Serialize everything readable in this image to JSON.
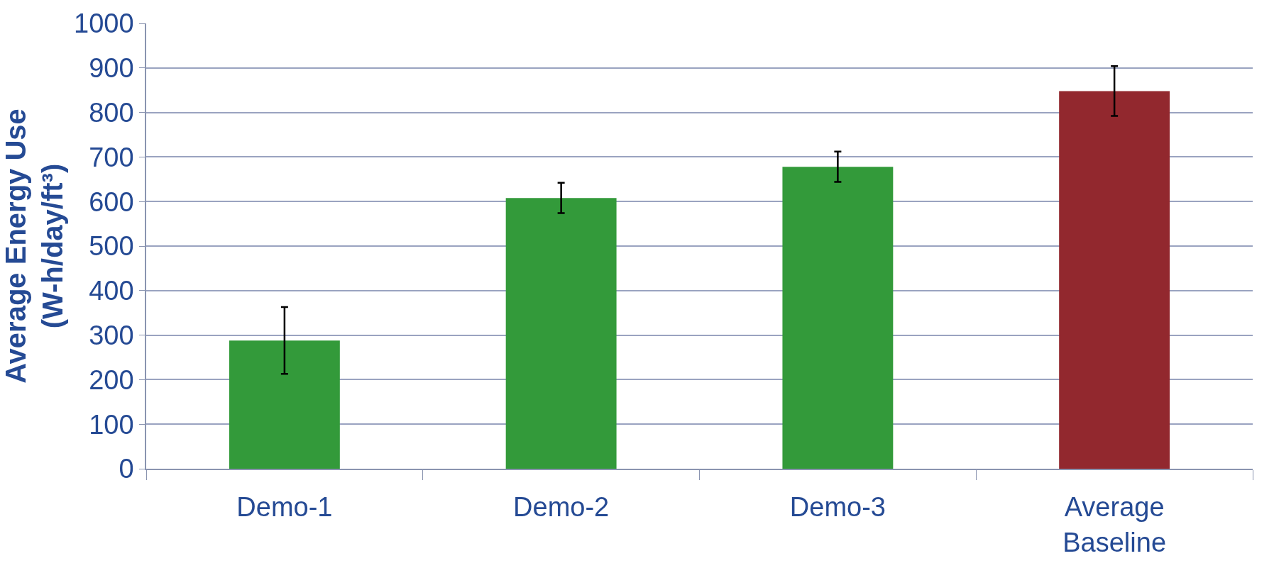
{
  "chart_data": {
    "type": "bar",
    "ylabel": "Average Energy Use (W-h/day/ft³)",
    "categories": [
      "Demo-1",
      "Demo-2",
      "Demo-3",
      "Average Baseline"
    ],
    "values": [
      288,
      608,
      678,
      848
    ],
    "colors": [
      "#339a3a",
      "#339a3a",
      "#339a3a",
      "#92282e"
    ],
    "errors": [
      75,
      34,
      34,
      56
    ],
    "ylim": [
      0,
      1000
    ],
    "yticks": [
      0,
      100,
      200,
      300,
      400,
      500,
      600,
      700,
      800,
      900,
      1000
    ],
    "grid": "y"
  }
}
